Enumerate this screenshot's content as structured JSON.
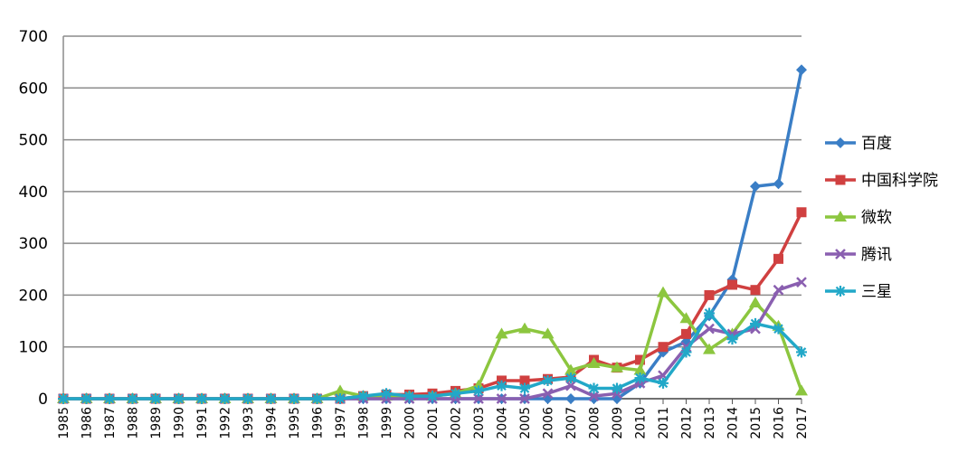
{
  "chart_data": {
    "type": "line",
    "title": "",
    "xlabel": "",
    "ylabel": "",
    "ylim": [
      0,
      700
    ],
    "yticks": [
      0,
      100,
      200,
      300,
      400,
      500,
      600,
      700
    ],
    "grid": true,
    "legend_position": "right",
    "x": [
      "1985",
      "1986",
      "1987",
      "1988",
      "1989",
      "1990",
      "1991",
      "1992",
      "1993",
      "1994",
      "1995",
      "1996",
      "1997",
      "1998",
      "1999",
      "2000",
      "2001",
      "2002",
      "2003",
      "2004",
      "2005",
      "2006",
      "2007",
      "2008",
      "2009",
      "2010",
      "2011",
      "2012",
      "2013",
      "2014",
      "2015",
      "2016",
      "2017"
    ],
    "series": [
      {
        "name": "百度",
        "color": "#3a7ec6",
        "marker": "diamond",
        "values": [
          0,
          0,
          0,
          0,
          0,
          0,
          0,
          0,
          0,
          0,
          0,
          0,
          0,
          0,
          0,
          0,
          0,
          0,
          0,
          0,
          0,
          0,
          0,
          0,
          0,
          30,
          90,
          110,
          160,
          230,
          410,
          415,
          635
        ]
      },
      {
        "name": "中国科学院",
        "color": "#d04040",
        "marker": "square",
        "values": [
          0,
          0,
          0,
          0,
          0,
          0,
          0,
          0,
          0,
          0,
          0,
          0,
          0,
          5,
          8,
          8,
          10,
          15,
          20,
          35,
          35,
          38,
          42,
          75,
          60,
          75,
          100,
          125,
          200,
          220,
          210,
          270,
          360
        ]
      },
      {
        "name": "微软",
        "color": "#8cc63f",
        "marker": "triangle",
        "values": [
          0,
          0,
          0,
          0,
          0,
          0,
          0,
          0,
          0,
          0,
          0,
          0,
          15,
          5,
          5,
          5,
          5,
          10,
          25,
          125,
          135,
          125,
          55,
          68,
          60,
          55,
          205,
          155,
          95,
          125,
          185,
          140,
          15
        ]
      },
      {
        "name": "腾讯",
        "color": "#8a5fb0",
        "marker": "x",
        "values": [
          0,
          0,
          0,
          0,
          0,
          0,
          0,
          0,
          0,
          0,
          0,
          0,
          0,
          0,
          0,
          0,
          0,
          0,
          0,
          0,
          0,
          10,
          25,
          5,
          10,
          30,
          45,
          100,
          135,
          125,
          135,
          210,
          225
        ]
      },
      {
        "name": "三星",
        "color": "#22a8c8",
        "marker": "star",
        "values": [
          0,
          0,
          0,
          0,
          0,
          0,
          0,
          0,
          0,
          0,
          0,
          0,
          0,
          5,
          10,
          5,
          5,
          10,
          15,
          25,
          20,
          35,
          40,
          20,
          20,
          40,
          30,
          90,
          165,
          115,
          145,
          135,
          90
        ]
      }
    ]
  }
}
